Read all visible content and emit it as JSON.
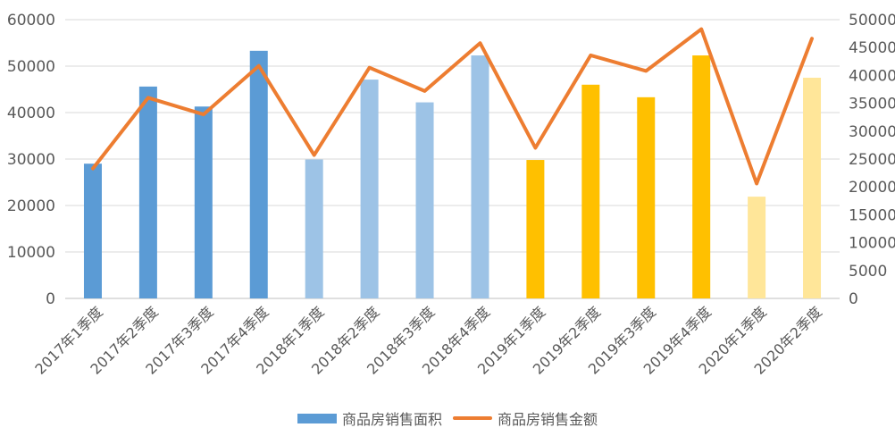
{
  "chart_data": {
    "type": "bar",
    "categories": [
      "2017年1季度",
      "2017年2季度",
      "2017年3季度",
      "2017年4季度",
      "2018年1季度",
      "2018年2季度",
      "2018年3季度",
      "2018年4季度",
      "2019年1季度",
      "2019年2季度",
      "2019年3季度",
      "2019年4季度",
      "2020年1季度",
      "2020年2季度"
    ],
    "series": [
      {
        "name": "商品房销售面积",
        "kind": "bar",
        "axis": "left",
        "values": [
          29000,
          45600,
          41300,
          53300,
          29900,
          47100,
          42200,
          52300,
          29800,
          46000,
          43300,
          52300,
          21900,
          47500
        ],
        "colors": [
          "#5b9bd5",
          "#5b9bd5",
          "#5b9bd5",
          "#5b9bd5",
          "#9dc3e6",
          "#9dc3e6",
          "#9dc3e6",
          "#9dc3e6",
          "#ffc000",
          "#ffc000",
          "#ffc000",
          "#ffc000",
          "#ffe699",
          "#ffe699"
        ]
      },
      {
        "name": "商品房销售金额",
        "kind": "line",
        "axis": "right",
        "color": "#ed7d31",
        "values": [
          23300,
          36000,
          33000,
          41700,
          25700,
          41400,
          37200,
          45800,
          27000,
          43600,
          40800,
          48300,
          20600,
          46600
        ]
      }
    ],
    "ylim_left": [
      0,
      60000
    ],
    "yticks_left": [
      "60000",
      "50000",
      "40000",
      "30000",
      "20000",
      "10000",
      "0"
    ],
    "ylim_right": [
      0,
      50000
    ],
    "yticks_right": [
      "50000",
      "45000",
      "40000",
      "35000",
      "30000",
      "25000",
      "20000",
      "15000",
      "10000",
      "5000",
      "0"
    ],
    "grid": true,
    "legend_position": "bottom"
  }
}
